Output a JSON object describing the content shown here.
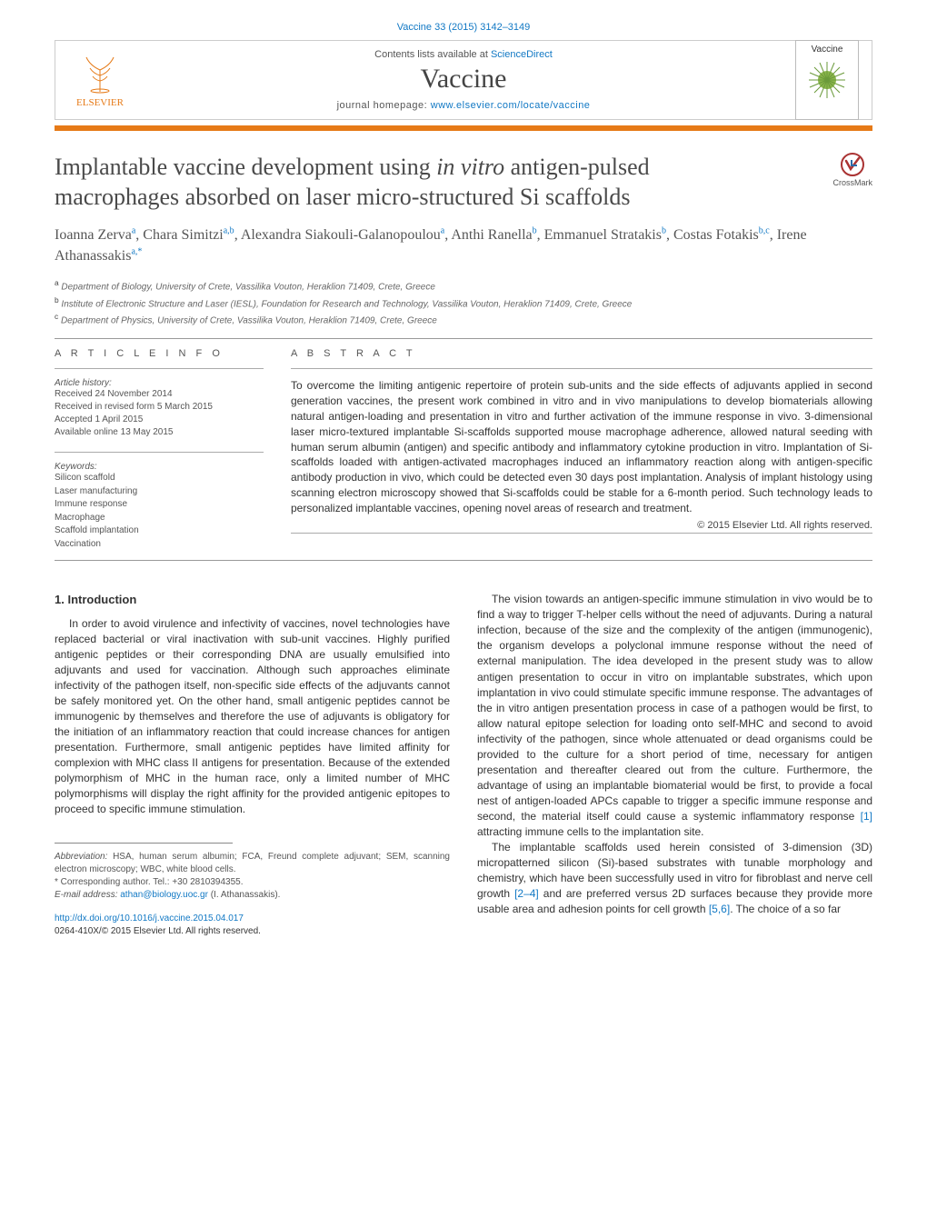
{
  "header": {
    "citation_prefix": "Vaccine 33 (2015) 3142–3149",
    "contents_at": "Contents lists available at",
    "contents_link": "ScienceDirect",
    "journal_name": "Vaccine",
    "homepage_label": "journal homepage:",
    "homepage_url": "www.elsevier.com/locate/vaccine",
    "publisher_name": "ELSEVIER",
    "thumb_label": "Vaccine"
  },
  "title": {
    "pre_italic": "Implantable vaccine development using ",
    "italic": "in vitro",
    "post_italic": " antigen-pulsed macrophages absorbed on laser micro-structured Si scaffolds"
  },
  "crossmark": "CrossMark",
  "authors": [
    {
      "name": "Ioanna Zerva",
      "affil": "a",
      "sep": ", "
    },
    {
      "name": "Chara Simitzi",
      "affil": "a,b",
      "sep": ", "
    },
    {
      "name": "Alexandra Siakouli-Galanopoulou",
      "affil": "a",
      "sep": ", "
    },
    {
      "name": "Anthi Ranella",
      "affil": "b",
      "sep": ", "
    },
    {
      "name": "Emmanuel Stratakis",
      "affil": "b",
      "sep": ", "
    },
    {
      "name": "Costas Fotakis",
      "affil": "b,c",
      "sep": ", "
    },
    {
      "name": "Irene Athanassakis",
      "affil": "a,*",
      "sep": ""
    }
  ],
  "affiliations": [
    {
      "tag": "a",
      "text": "Department of Biology, University of Crete, Vassilika Vouton, Heraklion 71409, Crete, Greece"
    },
    {
      "tag": "b",
      "text": "Institute of Electronic Structure and Laser (IESL), Foundation for Research and Technology, Vassilika Vouton, Heraklion 71409, Crete, Greece"
    },
    {
      "tag": "c",
      "text": "Department of Physics, University of Crete, Vassilika Vouton, Heraklion 71409, Crete, Greece"
    }
  ],
  "section_headers": {
    "info": "A R T I C L E   I N F O",
    "abstract": "A B S T R A C T"
  },
  "history": {
    "label": "Article history:",
    "items": [
      "Received 24 November 2014",
      "Received in revised form 5 March 2015",
      "Accepted 1 April 2015",
      "Available online 13 May 2015"
    ]
  },
  "keywords": {
    "label": "Keywords:",
    "items": [
      "Silicon scaffold",
      "Laser manufacturing",
      "Immune response",
      "Macrophage",
      "Scaffold implantation",
      "Vaccination"
    ]
  },
  "abstract": {
    "text": "To overcome the limiting antigenic repertoire of protein sub-units and the side effects of adjuvants applied in second generation vaccines, the present work combined in vitro and in vivo manipulations to develop biomaterials allowing natural antigen-loading and presentation in vitro and further activation of the immune response in vivo. 3-dimensional laser micro-textured implantable Si-scaffolds supported mouse macrophage adherence, allowed natural seeding with human serum albumin (antigen) and specific antibody and inflammatory cytokine production in vitro. Implantation of Si-scaffolds loaded with antigen-activated macrophages induced an inflammatory reaction along with antigen-specific antibody production in vivo, which could be detected even 30 days post implantation. Analysis of implant histology using scanning electron microscopy showed that Si-scaffolds could be stable for a 6-month period. Such technology leads to personalized implantable vaccines, opening novel areas of research and treatment.",
    "copyright": "© 2015 Elsevier Ltd. All rights reserved."
  },
  "intro": {
    "heading": "1. Introduction",
    "p1": "In order to avoid virulence and infectivity of vaccines, novel technologies have replaced bacterial or viral inactivation with sub-unit vaccines. Highly purified antigenic peptides or their corresponding DNA are usually emulsified into adjuvants and used for vaccination. Although such approaches eliminate infectivity of the pathogen itself, non-specific side effects of the adjuvants cannot be safely monitored yet. On the other hand, small antigenic peptides cannot be immunogenic by themselves and therefore the use of adjuvants is obligatory for the initiation of an inflammatory reaction that could increase chances for antigen presentation. Furthermore, small antigenic peptides have limited affinity for complexion with MHC class II antigens for presentation. Because of the extended polymorphism of MHC in the human race, only a limited number of MHC polymorphisms will display the right affinity for the provided antigenic epitopes to proceed to specific immune stimulation."
  },
  "col2": {
    "p1": "The vision towards an antigen-specific immune stimulation in vivo would be to find a way to trigger T-helper cells without the need of adjuvants. During a natural infection, because of the size and the complexity of the antigen (immunogenic), the organism develops a polyclonal immune response without the need of external manipulation. The idea developed in the present study was to allow antigen presentation to occur in vitro on implantable substrates, which upon implantation in vivo could stimulate specific immune response. The advantages of the in vitro antigen presentation process in case of a pathogen would be first, to allow natural epitope selection for loading onto self-MHC and second to avoid infectivity of the pathogen, since whole attenuated or dead organisms could be provided to the culture for a short period of time, necessary for antigen presentation and thereafter cleared out from the culture. Furthermore, the advantage of using an implantable biomaterial would be first, to provide a focal nest of antigen-loaded APCs capable to trigger a specific immune response and second, the material itself could cause a systemic inflammatory response ",
    "cite1": "[1]",
    "p1_tail": " attracting immune cells to the implantation site.",
    "p2_head": "The implantable scaffolds used herein consisted of 3-dimension (3D) micropatterned silicon (Si)-based substrates with tunable morphology and chemistry, which have been successfully used in vitro for fibroblast and nerve cell growth ",
    "cite2": "[2–4]",
    "p2_mid": " and are preferred versus 2D surfaces because they provide more usable area and adhesion points for cell growth ",
    "cite3": "[5,6]",
    "p2_tail": ". The choice of a so far"
  },
  "footnotes": {
    "abbr_label": "Abbreviation:",
    "abbr_text": " HSA, human serum albumin; FCA, Freund complete adjuvant; SEM, scanning electron microscopy; WBC, white blood cells.",
    "corr_label": "* Corresponding author. Tel.: +30 2810394355.",
    "email_label": "E-mail address:",
    "email": "athan@biology.uoc.gr",
    "email_who": " (I. Athanassakis)."
  },
  "doi": {
    "url": "http://dx.doi.org/10.1016/j.vaccine.2015.04.017",
    "issn_line": "0264-410X/© 2015 Elsevier Ltd. All rights reserved."
  },
  "colors": {
    "orange": "#e67a17",
    "link": "#1178c4",
    "text": "#333333",
    "muted": "#666666",
    "rule": "#999999"
  },
  "typography": {
    "title_fontsize": 26,
    "author_fontsize": 16,
    "body_fontsize": 12,
    "small_fontsize": 10,
    "journal_fontsize": 30
  }
}
